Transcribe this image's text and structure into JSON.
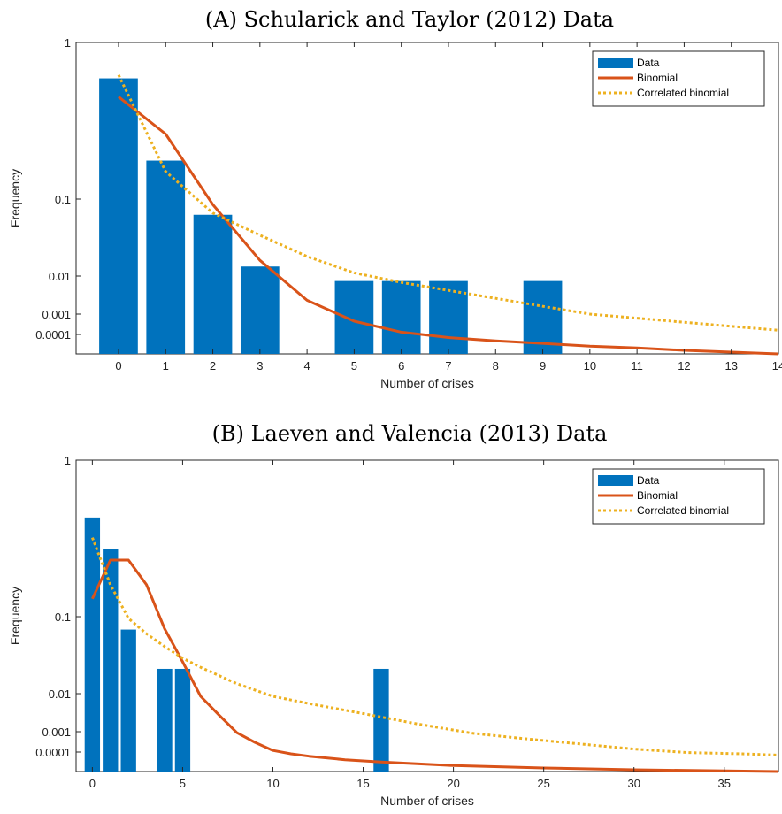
{
  "colors": {
    "bar": "#0072BD",
    "binomial": "#D95319",
    "correlated": "#EDB120",
    "axis": "#262626"
  },
  "chart_data": [
    {
      "type": "bar",
      "title": "(A) Schularick and Taylor (2012) Data",
      "xlabel": "Number of crises",
      "ylabel": "Frequency",
      "x_ticks": [
        0,
        1,
        2,
        3,
        4,
        5,
        6,
        7,
        8,
        9,
        10,
        11,
        12,
        13,
        14
      ],
      "y_ticks": [
        "1",
        "0.1",
        "0.01",
        "0.001",
        "0.0001"
      ],
      "xlim": [
        -0.9,
        14
      ],
      "legend_position": "top-right",
      "legend": [
        "Data",
        "Binomial",
        "Correlated binomial"
      ],
      "bars": {
        "name": "Data",
        "x": [
          0,
          1,
          2,
          3,
          5,
          6,
          7,
          9
        ],
        "values": [
          0.59,
          0.176,
          0.0625,
          0.0133,
          0.0074,
          0.0074,
          0.0074,
          0.0074
        ]
      },
      "series": [
        {
          "name": "Binomial",
          "x": [
            0,
            1,
            2,
            3,
            4,
            5,
            6,
            7,
            8,
            9,
            10,
            11,
            12,
            13,
            14
          ],
          "values": [
            0.45,
            0.26,
            0.085,
            0.016,
            0.0023,
            0.00045,
            0.00013,
            3e-05,
            8e-06,
            3e-06,
            1e-06,
            5e-07,
            2e-07,
            1e-07,
            5e-08
          ]
        },
        {
          "name": "Correlated binomial",
          "x": [
            0,
            1,
            2,
            3,
            4,
            5,
            6,
            7,
            8,
            9,
            10,
            11,
            12,
            13,
            14
          ],
          "values": [
            0.62,
            0.15,
            0.066,
            0.034,
            0.018,
            0.011,
            0.0068,
            0.0042,
            0.0026,
            0.0016,
            0.001,
            0.00063,
            0.0004,
            0.00025,
            0.00016
          ]
        }
      ]
    },
    {
      "type": "bar",
      "title": "(B) Laeven and Valencia (2013) Data",
      "xlabel": "Number of crises",
      "ylabel": "Frequency",
      "x_ticks": [
        0,
        5,
        10,
        15,
        20,
        25,
        30,
        35
      ],
      "y_ticks": [
        "1",
        "0.1",
        "0.01",
        "0.001",
        "0.0001"
      ],
      "xlim": [
        -0.9,
        38
      ],
      "legend_position": "top-right",
      "legend": [
        "Data",
        "Binomial",
        "Correlated binomial"
      ],
      "bars": {
        "name": "Data",
        "x": [
          0,
          1,
          2,
          4,
          5,
          16
        ],
        "values": [
          0.43,
          0.27,
          0.068,
          0.021,
          0.021,
          0.021
        ]
      },
      "series": [
        {
          "name": "Binomial",
          "x": [
            0,
            1,
            2,
            3,
            4,
            5,
            6,
            7,
            8,
            9,
            10,
            11,
            12,
            14,
            16,
            20,
            25,
            30,
            38
          ],
          "values": [
            0.13,
            0.23,
            0.23,
            0.16,
            0.07,
            0.026,
            0.0085,
            0.0028,
            0.0009,
            0.0003,
            0.00012,
            5e-05,
            2e-05,
            5e-06,
            2e-06,
            5e-07,
            2e-07,
            1e-07,
            5e-08
          ]
        },
        {
          "name": "Correlated binomial",
          "x": [
            0,
            1,
            2,
            3,
            4,
            5,
            6,
            8,
            10,
            12,
            15,
            18,
            21,
            24,
            27,
            30,
            33,
            36,
            38
          ],
          "values": [
            0.32,
            0.16,
            0.095,
            0.06,
            0.041,
            0.029,
            0.022,
            0.0135,
            0.0085,
            0.0055,
            0.003,
            0.0016,
            0.00085,
            0.00045,
            0.00025,
            0.00014,
            8e-05,
            5e-05,
            3e-05
          ]
        }
      ]
    }
  ]
}
